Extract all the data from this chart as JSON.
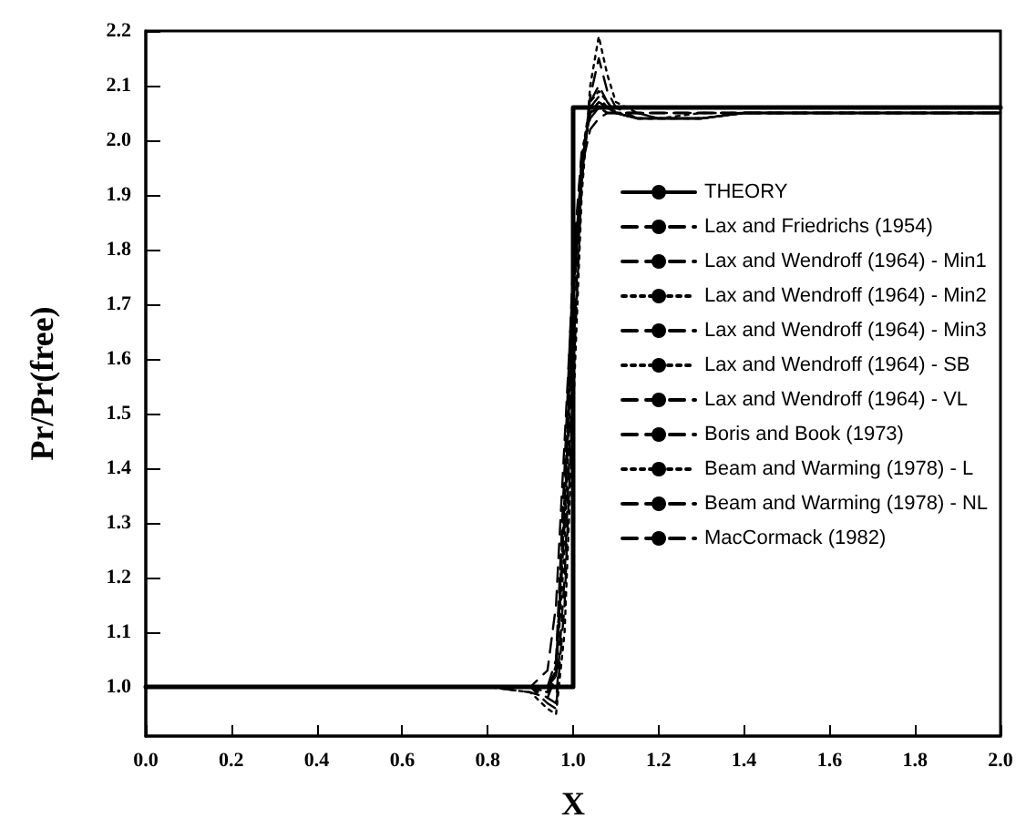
{
  "chart_data": {
    "type": "line",
    "xlabel": "X",
    "ylabel": "Pr/Pr(free)",
    "x": [
      0,
      0.8,
      0.9,
      0.94,
      0.96,
      0.98,
      1.0,
      1.02,
      1.04,
      1.06,
      1.08,
      1.1,
      1.15,
      1.2,
      1.3,
      1.4,
      1.6,
      2.0
    ],
    "series": [
      {
        "name": "THEORY",
        "color": "#000000",
        "line_style": "solid",
        "x": [
          0,
          1.0,
          1.0,
          2.0
        ],
        "values": [
          1.0,
          1.0,
          2.06,
          2.06
        ]
      },
      {
        "name": "Lax and Friedrichs (1954)",
        "color": "#000000",
        "line_style": "dashed",
        "values": [
          1.0,
          1.0,
          1.0,
          1.03,
          1.15,
          1.45,
          1.75,
          1.95,
          2.02,
          2.04,
          2.05,
          2.05,
          2.05,
          2.05,
          2.05,
          2.05,
          2.05,
          2.05
        ]
      },
      {
        "name": "Lax and Wendroff (1964) - Min1",
        "color": "#000000",
        "line_style": "dashed",
        "values": [
          1.0,
          1.0,
          0.99,
          0.98,
          1.02,
          1.3,
          1.7,
          1.95,
          2.06,
          2.08,
          2.06,
          2.05,
          2.04,
          2.04,
          2.04,
          2.05,
          2.05,
          2.05
        ]
      },
      {
        "name": "Lax and Wendroff (1964) - Min2",
        "color": "#000000",
        "line_style": "dotted",
        "values": [
          1.0,
          1.0,
          1.0,
          0.99,
          1.03,
          1.35,
          1.72,
          1.96,
          2.05,
          2.07,
          2.06,
          2.05,
          2.05,
          2.04,
          2.04,
          2.05,
          2.05,
          2.05
        ]
      },
      {
        "name": "Lax and Wendroff (1964) - Min3",
        "color": "#000000",
        "line_style": "dashed",
        "values": [
          1.0,
          1.0,
          1.0,
          1.0,
          1.05,
          1.4,
          1.78,
          1.98,
          2.04,
          2.06,
          2.05,
          2.05,
          2.05,
          2.05,
          2.05,
          2.05,
          2.05,
          2.05
        ]
      },
      {
        "name": "Lax and Wendroff (1964) - SB",
        "color": "#000000",
        "line_style": "dotted",
        "values": [
          1.0,
          1.0,
          1.0,
          1.0,
          1.02,
          1.25,
          1.68,
          1.97,
          2.07,
          2.09,
          2.07,
          2.05,
          2.04,
          2.04,
          2.05,
          2.05,
          2.05,
          2.05
        ]
      },
      {
        "name": "Lax and Wendroff (1964) - VL",
        "color": "#000000",
        "line_style": "dashed",
        "values": [
          1.0,
          1.0,
          1.0,
          0.99,
          1.04,
          1.32,
          1.71,
          1.96,
          2.05,
          2.07,
          2.06,
          2.05,
          2.04,
          2.04,
          2.04,
          2.05,
          2.05,
          2.05
        ]
      },
      {
        "name": "Boris and Book (1973)",
        "color": "#000000",
        "line_style": "dashed",
        "values": [
          1.0,
          1.0,
          1.0,
          1.0,
          1.03,
          1.38,
          1.76,
          1.97,
          2.05,
          2.06,
          2.05,
          2.05,
          2.05,
          2.05,
          2.05,
          2.05,
          2.05,
          2.05
        ]
      },
      {
        "name": "Beam and Warming (1978) - L",
        "color": "#000000",
        "line_style": "dotted",
        "values": [
          1.0,
          1.0,
          0.99,
          0.96,
          0.95,
          1.1,
          1.5,
          1.9,
          2.1,
          2.19,
          2.12,
          2.07,
          2.05,
          2.04,
          2.04,
          2.05,
          2.05,
          2.05
        ]
      },
      {
        "name": "Beam and Warming (1978) - NL",
        "color": "#000000",
        "line_style": "dashed",
        "values": [
          1.0,
          1.0,
          1.0,
          0.98,
          0.97,
          1.2,
          1.6,
          1.93,
          2.07,
          2.1,
          2.07,
          2.05,
          2.04,
          2.04,
          2.04,
          2.05,
          2.05,
          2.05
        ]
      },
      {
        "name": "MacCormack (1982)",
        "color": "#000000",
        "line_style": "dashed",
        "values": [
          1.0,
          1.0,
          1.0,
          0.97,
          0.96,
          1.15,
          1.55,
          1.92,
          2.08,
          2.15,
          2.09,
          2.06,
          2.04,
          2.04,
          2.04,
          2.05,
          2.05,
          2.05
        ]
      }
    ],
    "xlim": [
      0,
      2
    ],
    "xticks": [
      {
        "value": 0,
        "label": "0.0"
      },
      {
        "value": 0.2,
        "label": "0.2"
      },
      {
        "value": 0.4,
        "label": "0.4"
      },
      {
        "value": 0.6,
        "label": "0.6"
      },
      {
        "value": 0.8,
        "label": "0.8"
      },
      {
        "value": 1.0,
        "label": "1.0"
      },
      {
        "value": 1.2,
        "label": "1.2"
      },
      {
        "value": 1.4,
        "label": "1.4"
      },
      {
        "value": 1.6,
        "label": "1.6"
      },
      {
        "value": 1.8,
        "label": "1.8"
      },
      {
        "value": 2.0,
        "label": "2.0"
      }
    ],
    "ylim": [
      0.91,
      2.2
    ],
    "yticks": [
      {
        "value": 1.0,
        "label": "1.0"
      },
      {
        "value": 1.1,
        "label": "1.1"
      },
      {
        "value": 1.2,
        "label": "1.2"
      },
      {
        "value": 1.3,
        "label": "1.3"
      },
      {
        "value": 1.4,
        "label": "1.4"
      },
      {
        "value": 1.5,
        "label": "1.5"
      },
      {
        "value": 1.6,
        "label": "1.6"
      },
      {
        "value": 1.7,
        "label": "1.7"
      },
      {
        "value": 1.8,
        "label": "1.8"
      },
      {
        "value": 1.9,
        "label": "1.9"
      },
      {
        "value": 2.0,
        "label": "2.0"
      },
      {
        "value": 2.1,
        "label": "2.1"
      },
      {
        "value": 2.2,
        "label": "2.2"
      }
    ],
    "grid": false,
    "legend": "right",
    "marker": "none"
  }
}
